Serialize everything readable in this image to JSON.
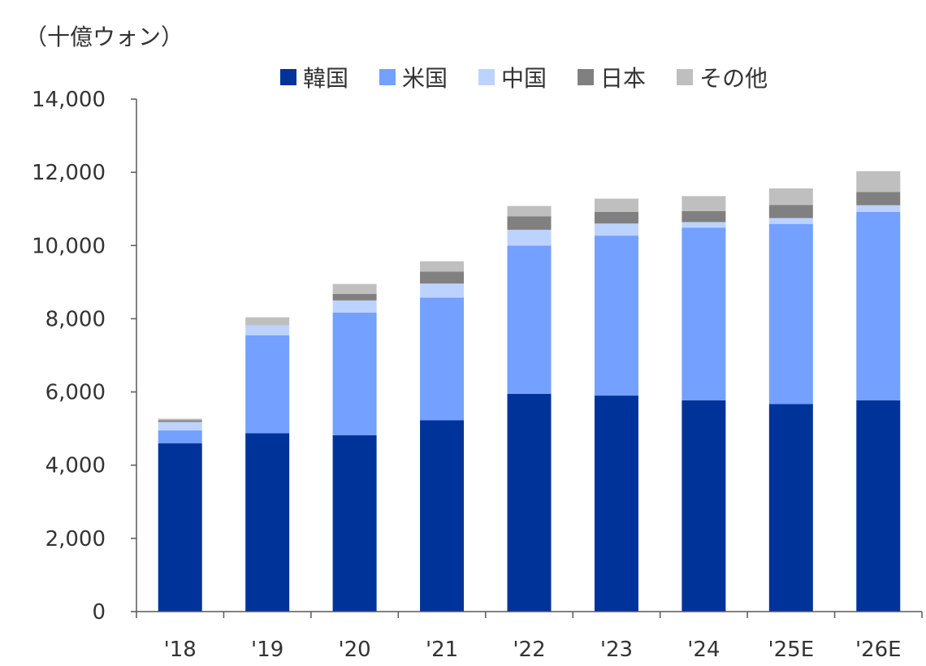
{
  "chart_data": {
    "type": "bar",
    "stacked": true,
    "unit_label": "（十億ウォン）",
    "categories": [
      "'18",
      "'19",
      "'20",
      "'21",
      "'22",
      "'23",
      "'24",
      "'25E",
      "'26E"
    ],
    "series": [
      {
        "name": "韓国",
        "color": "#003399",
        "values": [
          4600,
          4870,
          4820,
          5230,
          5950,
          5900,
          5770,
          5670,
          5770
        ]
      },
      {
        "name": "米国",
        "color": "#74A0FF",
        "values": [
          350,
          2680,
          3350,
          3350,
          4050,
          4370,
          4720,
          4920,
          5150
        ]
      },
      {
        "name": "中国",
        "color": "#BDD3FF",
        "values": [
          230,
          270,
          330,
          380,
          430,
          330,
          150,
          160,
          180
        ]
      },
      {
        "name": "日本",
        "color": "#808080",
        "values": [
          50,
          0,
          180,
          330,
          370,
          320,
          300,
          360,
          360
        ]
      },
      {
        "name": "その他",
        "color": "#BFBFBF",
        "values": [
          40,
          220,
          270,
          280,
          280,
          360,
          410,
          450,
          570
        ]
      }
    ],
    "ylim": [
      0,
      14000
    ],
    "yticks": [
      0,
      2000,
      4000,
      6000,
      8000,
      10000,
      12000,
      14000
    ],
    "ytick_labels": [
      "0",
      "2,000",
      "4,000",
      "6,000",
      "8,000",
      "10,000",
      "12,000",
      "14,000"
    ],
    "legend_position": "top",
    "grid": false
  }
}
